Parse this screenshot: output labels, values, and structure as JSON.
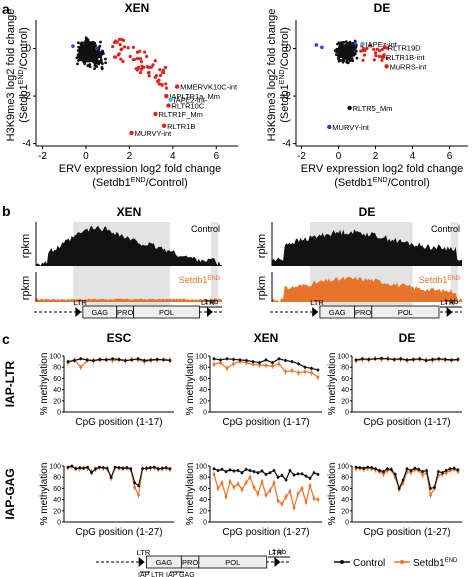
{
  "panel_labels": [
    "a",
    "b",
    "c"
  ],
  "colors": {
    "black": "#111111",
    "red": "#e0201b",
    "blue": "#2f3fc8",
    "cyan": "#3db9e6",
    "orange": "#e8742b",
    "gray_shade": "#d9d9d9"
  },
  "panel_a": {
    "xlabel": "ERV expression log2 fold change",
    "xlabel2": "(Setdb1",
    "xlabel2_sup": "END",
    "xlabel2_end": "/Control)",
    "ylabel": "H3K9me3 log2 fold change",
    "ylabel2": "(Setdb1",
    "ylabel2_sup": "END",
    "ylabel2_end": "/Control)",
    "xticks": [
      "-2",
      "0",
      "2",
      "4",
      "6"
    ],
    "yticks": [
      "0",
      "-2",
      "-4"
    ],
    "plots": [
      {
        "title": "XEN",
        "labels": [
          "MMERVK10C-int",
          "IAPLTR1a_Mm",
          "IAPEz-int",
          "RLTR10C",
          "RLTR1F_Mm",
          "RLTR1B",
          "MURVY-int"
        ]
      },
      {
        "title": "DE",
        "labels": [
          "IAPEz-int",
          "RLTR19D",
          "RLTR1B-int",
          "MuRRS-int",
          "RLTR5_Mm",
          "MURVY-int"
        ]
      }
    ]
  },
  "panel_b": {
    "tracks": [
      {
        "title": "XEN",
        "ylabel": "rpkm",
        "top_label": "Control",
        "bottom_label": "Setdb1",
        "bottom_sup": "END"
      },
      {
        "title": "DE",
        "ylabel": "rpkm",
        "top_label": "Control",
        "bottom_label": "Setdb1",
        "bottom_sup": "END"
      }
    ],
    "schematic": [
      "LTR",
      "GAG",
      "PRO",
      "POL",
      "LTR"
    ],
    "scale": "1 kb"
  },
  "panel_c": {
    "columns": [
      "ESC",
      "XEN",
      "DE"
    ],
    "rows": [
      "IAP-LTR",
      "IAP-GAG"
    ],
    "ylabel": "% methylation",
    "yticks": [
      "0",
      "20",
      "40",
      "60",
      "80",
      "100"
    ],
    "xlabels": [
      "CpG position (1-17)",
      "CpG position (1-27)"
    ],
    "legend": {
      "control": "Control",
      "setdb1": "Setdb1",
      "setdb1_sup": "END"
    },
    "schematic": [
      "LTR",
      "GAG",
      "PRO",
      "POL",
      "LTR"
    ],
    "scale": "1 kb",
    "amplicons": [
      "IAP LTR",
      "IAP GAG"
    ]
  },
  "chart_data": [
    {
      "type": "scatter",
      "title": "XEN",
      "xlabel": "ERV expression log2 fold change (Setdb1END/Control)",
      "ylabel": "H3K9me3 log2 fold change (Setdb1END/Control)",
      "xlim": [
        -2.3,
        7
      ],
      "ylim": [
        -4.1,
        1.2
      ],
      "points": [
        {
          "x": 4.2,
          "y": -1.6,
          "label": "MMERVK10C-int",
          "color": "red"
        },
        {
          "x": 3.7,
          "y": -2.0,
          "label": "IAPLTR1a_Mm",
          "color": "red"
        },
        {
          "x": 3.9,
          "y": -2.15,
          "label": "IAPEz-int",
          "color": "cyan"
        },
        {
          "x": 3.8,
          "y": -2.4,
          "label": "RLTR10C",
          "color": "red"
        },
        {
          "x": 3.2,
          "y": -2.75,
          "label": "RLTR1F_Mm",
          "color": "red"
        },
        {
          "x": 3.6,
          "y": -3.25,
          "label": "RLTR1B",
          "color": "red"
        },
        {
          "x": 2.1,
          "y": -3.55,
          "label": "MURVY-int",
          "color": "red"
        }
      ]
    },
    {
      "type": "scatter",
      "title": "DE",
      "xlabel": "ERV expression log2 fold change (Setdb1END/Control)",
      "ylabel": "H3K9me3 log2 fold change (Setdb1END/Control)",
      "xlim": [
        -2.3,
        7
      ],
      "ylim": [
        -4.1,
        1.2
      ],
      "points": [
        {
          "x": 1.3,
          "y": 0.2,
          "label": "IAPEz-int",
          "color": "cyan"
        },
        {
          "x": 2.5,
          "y": 0.05,
          "label": "RLTR19D",
          "color": "red"
        },
        {
          "x": 2.4,
          "y": -0.35,
          "label": "RLTR1B-int",
          "color": "red"
        },
        {
          "x": 2.6,
          "y": -0.75,
          "label": "MuRRS-int",
          "color": "red"
        },
        {
          "x": 0.6,
          "y": -2.5,
          "label": "RLTR5_Mm",
          "color": "black"
        },
        {
          "x": -0.5,
          "y": -3.3,
          "label": "MURVY-int",
          "color": "blue"
        }
      ]
    },
    {
      "type": "line",
      "title": "ESC IAP-LTR",
      "ylim": [
        0,
        100
      ],
      "series": [
        {
          "name": "Control",
          "values": [
            90,
            92,
            95,
            93,
            92,
            94,
            93,
            95,
            94,
            92,
            93,
            95,
            92,
            93,
            94,
            93,
            92
          ]
        },
        {
          "name": "Setdb1END",
          "values": [
            88,
            93,
            80,
            92,
            91,
            93,
            94,
            92,
            93,
            91,
            94,
            93,
            90,
            92,
            93,
            94,
            93
          ]
        }
      ]
    },
    {
      "type": "line",
      "title": "XEN IAP-LTR",
      "ylim": [
        0,
        100
      ],
      "series": [
        {
          "name": "Control",
          "values": [
            95,
            93,
            95,
            94,
            93,
            92,
            90,
            88,
            93,
            88,
            95,
            92,
            90,
            86,
            80,
            78,
            75
          ]
        },
        {
          "name": "Setdb1END",
          "values": [
            85,
            88,
            78,
            86,
            90,
            88,
            85,
            84,
            83,
            82,
            86,
            72,
            74,
            70,
            72,
            70,
            62
          ]
        }
      ]
    },
    {
      "type": "line",
      "title": "DE IAP-LTR",
      "ylim": [
        0,
        100
      ],
      "series": [
        {
          "name": "Control",
          "values": [
            93,
            95,
            94,
            95,
            96,
            95,
            94,
            95,
            93,
            94,
            95,
            92,
            94,
            95,
            94,
            93,
            94
          ]
        },
        {
          "name": "Setdb1END",
          "values": [
            91,
            94,
            93,
            95,
            94,
            95,
            93,
            94,
            92,
            93,
            94,
            93,
            92,
            94,
            93,
            92,
            93
          ]
        }
      ]
    },
    {
      "type": "line",
      "title": "ESC IAP-GAG",
      "ylim": [
        0,
        100
      ],
      "series": [
        {
          "name": "Control",
          "values": [
            98,
            100,
            95,
            97,
            96,
            98,
            88,
            95,
            98,
            97,
            96,
            80,
            98,
            97,
            96,
            97,
            95,
            70,
            65,
            95,
            96,
            97,
            98,
            95,
            96,
            97,
            95
          ]
        },
        {
          "name": "Setdb1END",
          "values": [
            97,
            99,
            96,
            95,
            97,
            96,
            90,
            94,
            97,
            96,
            95,
            78,
            97,
            96,
            95,
            96,
            94,
            62,
            48,
            96,
            95,
            96,
            97,
            94,
            95,
            96,
            94
          ]
        }
      ]
    },
    {
      "type": "line",
      "title": "XEN IAP-GAG",
      "ylim": [
        0,
        100
      ],
      "series": [
        {
          "name": "Control",
          "values": [
            95,
            92,
            94,
            90,
            93,
            91,
            92,
            88,
            94,
            92,
            90,
            88,
            91,
            85,
            88,
            92,
            80,
            83,
            75,
            92,
            84,
            86,
            86,
            82,
            78,
            88,
            85
          ]
        },
        {
          "name": "Setdb1END",
          "values": [
            85,
            60,
            70,
            45,
            72,
            62,
            68,
            58,
            70,
            80,
            62,
            50,
            72,
            48,
            56,
            70,
            38,
            32,
            45,
            55,
            25,
            50,
            60,
            35,
            65,
            42,
            40
          ]
        }
      ]
    },
    {
      "type": "line",
      "title": "DE IAP-GAG",
      "ylim": [
        0,
        100
      ],
      "series": [
        {
          "name": "Control",
          "values": [
            98,
            97,
            96,
            98,
            97,
            95,
            92,
            90,
            95,
            94,
            85,
            60,
            75,
            95,
            92,
            96,
            94,
            90,
            92,
            60,
            62,
            90,
            88,
            92,
            95,
            96,
            93
          ]
        },
        {
          "name": "Setdb1END",
          "values": [
            95,
            96,
            94,
            96,
            95,
            93,
            90,
            85,
            92,
            93,
            80,
            58,
            70,
            90,
            88,
            93,
            92,
            84,
            88,
            48,
            60,
            84,
            85,
            88,
            92,
            94,
            90
          ]
        }
      ]
    }
  ]
}
